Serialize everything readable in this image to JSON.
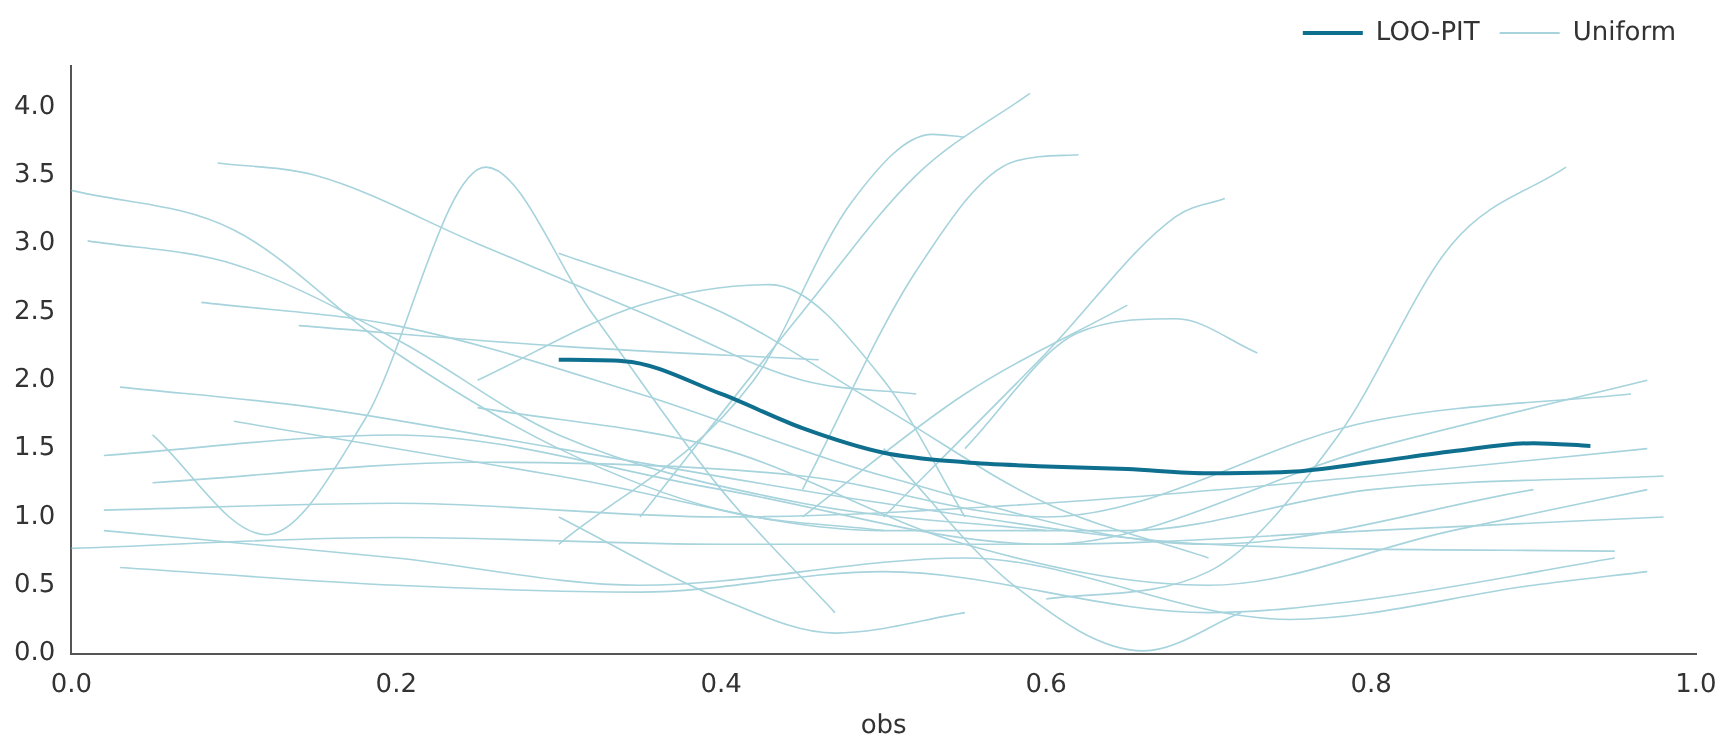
{
  "chart_data": {
    "type": "line",
    "xlabel": "obs",
    "xlim": [
      0,
      1
    ],
    "xticks": [
      {
        "value": 0,
        "label": "0.0"
      },
      0.2,
      0.4,
      0.6,
      0.8,
      {
        "value": 1,
        "label": "1.0"
      }
    ],
    "ylim": [
      0,
      4.3
    ],
    "yticks": [
      {
        "value": 0,
        "label": "0.0"
      },
      0.5,
      {
        "value": 1,
        "label": "1.0"
      },
      1.5,
      {
        "value": 2,
        "label": "2.0"
      },
      2.5,
      {
        "value": 3,
        "label": "3.0"
      },
      3.5,
      {
        "value": 4,
        "label": "4.0"
      }
    ],
    "grid": false,
    "legend": "top right",
    "marker": "none",
    "line_style": "solid",
    "series": [
      {
        "name": "LOO-PIT",
        "color": "#0f6f8f",
        "x": [
          0.3,
          0.34,
          0.4,
          0.45,
          0.5,
          0.55,
          0.6,
          0.65,
          0.7,
          0.75,
          0.8,
          0.85,
          0.9,
          0.935
        ],
        "values": [
          2.15,
          2.14,
          1.9,
          1.65,
          1.47,
          1.4,
          1.37,
          1.35,
          1.32,
          1.33,
          1.4,
          1.48,
          1.54,
          1.52
        ]
      },
      {
        "name": "Uniform",
        "color": "#a6d3dc",
        "x": [
          0,
          0.1,
          0.2,
          0.3,
          0.4,
          0.5
        ],
        "values": [
          3.39,
          3.1,
          2.2,
          1.5,
          1.05,
          0.9
        ]
      },
      {
        "color": "#a6d3dc",
        "x": [
          0.01,
          0.1,
          0.2,
          0.3,
          0.45,
          0.6
        ],
        "values": [
          3.02,
          2.85,
          2.3,
          1.6,
          1.1,
          0.9
        ]
      },
      {
        "color": "#a6d3dc",
        "x": [
          0.09,
          0.15,
          0.25,
          0.35,
          0.45,
          0.52
        ],
        "values": [
          3.59,
          3.5,
          3.0,
          2.5,
          2.0,
          1.9
        ]
      },
      {
        "color": "#a6d3dc",
        "x": [
          0.05,
          0.12,
          0.18,
          0.255,
          0.32,
          0.4,
          0.47
        ],
        "values": [
          1.6,
          0.87,
          1.7,
          3.56,
          2.5,
          1.2,
          0.3
        ]
      },
      {
        "color": "#a6d3dc",
        "x": [
          0.35,
          0.45,
          0.52,
          0.59
        ],
        "values": [
          1.0,
          2.5,
          3.5,
          4.1
        ]
      },
      {
        "color": "#a6d3dc",
        "x": [
          0.3,
          0.42,
          0.48,
          0.53,
          0.55
        ],
        "values": [
          0.8,
          2.0,
          3.3,
          3.8,
          3.78
        ]
      },
      {
        "color": "#a6d3dc",
        "x": [
          0.45,
          0.52,
          0.58,
          0.62
        ],
        "values": [
          1.2,
          2.8,
          3.6,
          3.65
        ]
      },
      {
        "color": "#a6d3dc",
        "x": [
          0.5,
          0.6,
          0.68,
          0.71
        ],
        "values": [
          1.0,
          2.2,
          3.2,
          3.33
        ]
      },
      {
        "color": "#a6d3dc",
        "x": [
          0.6,
          0.7,
          0.78,
          0.85,
          0.92
        ],
        "values": [
          0.4,
          0.6,
          1.6,
          3.0,
          3.56
        ]
      },
      {
        "color": "#a6d3dc",
        "x": [
          0.5,
          0.58,
          0.66,
          0.72
        ],
        "values": [
          1.5,
          0.5,
          0.02,
          0.3
        ]
      },
      {
        "color": "#a6d3dc",
        "x": [
          0.25,
          0.35,
          0.43,
          0.5,
          0.55
        ],
        "values": [
          2.0,
          2.55,
          2.7,
          2.0,
          1.0
        ]
      },
      {
        "color": "#a6d3dc",
        "x": [
          0.45,
          0.55,
          0.65
        ],
        "values": [
          1.0,
          1.9,
          2.55
        ]
      },
      {
        "color": "#a6d3dc",
        "x": [
          0.55,
          0.62,
          0.68,
          0.73
        ],
        "values": [
          1.5,
          2.35,
          2.45,
          2.2
        ]
      },
      {
        "color": "#a6d3dc",
        "x": [
          0.3,
          0.4,
          0.47,
          0.55
        ],
        "values": [
          1.0,
          0.4,
          0.15,
          0.3
        ]
      },
      {
        "color": "#a6d3dc",
        "x": [
          0.03,
          0.2,
          0.35,
          0.5,
          0.7,
          0.8,
          0.95
        ],
        "values": [
          0.63,
          0.5,
          0.45,
          0.6,
          0.3,
          0.4,
          0.7
        ]
      },
      {
        "color": "#a6d3dc",
        "x": [
          0,
          0.2,
          0.4,
          0.6,
          0.8,
          0.98
        ],
        "values": [
          0.77,
          0.85,
          0.8,
          0.8,
          0.9,
          1.0
        ]
      },
      {
        "color": "#a6d3dc",
        "x": [
          0.03,
          0.15,
          0.3,
          0.5,
          0.7,
          0.95
        ],
        "values": [
          1.95,
          1.8,
          1.5,
          1.1,
          0.8,
          0.75
        ]
      },
      {
        "color": "#a6d3dc",
        "x": [
          0.02,
          0.2,
          0.4,
          0.6,
          0.8,
          0.97
        ],
        "values": [
          1.45,
          1.6,
          1.2,
          0.8,
          1.5,
          2.0
        ]
      },
      {
        "color": "#a6d3dc",
        "x": [
          0.02,
          0.2,
          0.4,
          0.6,
          0.8,
          0.97
        ],
        "values": [
          1.05,
          1.1,
          1.0,
          1.1,
          1.3,
          1.5
        ]
      },
      {
        "color": "#a6d3dc",
        "x": [
          0.05,
          0.25,
          0.45,
          0.6,
          0.8,
          0.96
        ],
        "values": [
          1.25,
          1.4,
          1.3,
          1.0,
          1.7,
          1.9
        ]
      },
      {
        "color": "#a6d3dc",
        "x": [
          0.08,
          0.2,
          0.35,
          0.5,
          0.7,
          0.9
        ],
        "values": [
          2.57,
          2.4,
          1.9,
          1.3,
          0.8,
          1.2
        ]
      },
      {
        "color": "#a6d3dc",
        "x": [
          0.3,
          0.4,
          0.5,
          0.6,
          0.7
        ],
        "values": [
          2.93,
          2.5,
          1.8,
          1.1,
          0.7
        ]
      },
      {
        "color": "#a6d3dc",
        "x": [
          0.14,
          0.3,
          0.46
        ],
        "values": [
          2.4,
          2.25,
          2.15
        ]
      },
      {
        "color": "#a6d3dc",
        "x": [
          0.02,
          0.2,
          0.35,
          0.55,
          0.75,
          0.9,
          0.97
        ],
        "values": [
          0.9,
          0.7,
          0.5,
          0.7,
          0.25,
          0.5,
          0.6
        ]
      },
      {
        "color": "#a6d3dc",
        "x": [
          0.1,
          0.3,
          0.5,
          0.65,
          0.8,
          0.98
        ],
        "values": [
          1.7,
          1.3,
          0.9,
          0.9,
          1.2,
          1.3
        ]
      },
      {
        "color": "#a6d3dc",
        "x": [
          0.25,
          0.4,
          0.55,
          0.7,
          0.85,
          0.97
        ],
        "values": [
          1.8,
          1.5,
          0.8,
          0.5,
          0.9,
          1.2
        ]
      }
    ]
  }
}
